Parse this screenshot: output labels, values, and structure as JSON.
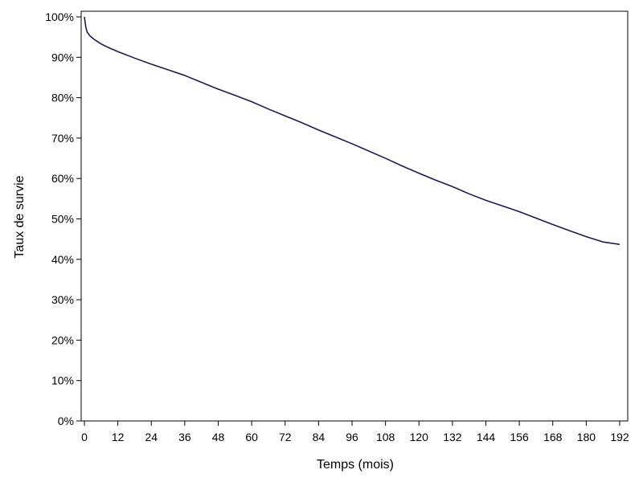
{
  "chart_data": {
    "type": "line",
    "title": "",
    "xlabel": "Temps (mois)",
    "ylabel": "Taux de survie",
    "xlim": [
      0,
      192
    ],
    "ylim": [
      0,
      100
    ],
    "x_ticks": [
      0,
      12,
      24,
      36,
      48,
      60,
      72,
      84,
      96,
      108,
      120,
      132,
      144,
      156,
      168,
      180,
      192
    ],
    "y_ticks": [
      0,
      10,
      20,
      30,
      40,
      50,
      60,
      70,
      80,
      90,
      100
    ],
    "y_tick_labels": [
      "0%",
      "10%",
      "20%",
      "30%",
      "40%",
      "50%",
      "60%",
      "70%",
      "80%",
      "90%",
      "100%"
    ],
    "grid": false,
    "series": [
      {
        "color": "#1a1a5e",
        "x": [
          0,
          0.5,
          1,
          2,
          3,
          4,
          6,
          8,
          12,
          18,
          24,
          30,
          36,
          42,
          48,
          54,
          60,
          66,
          72,
          78,
          84,
          90,
          96,
          102,
          108,
          114,
          120,
          126,
          132,
          138,
          144,
          150,
          156,
          162,
          168,
          174,
          180,
          186,
          192
        ],
        "y": [
          100,
          97.5,
          96.2,
          95.3,
          94.7,
          94.2,
          93.3,
          92.6,
          91.4,
          89.8,
          88.3,
          86.9,
          85.5,
          83.8,
          82.1,
          80.6,
          79.0,
          77.2,
          75.5,
          73.8,
          72.0,
          70.3,
          68.6,
          66.8,
          65.0,
          63.1,
          61.3,
          59.6,
          58.0,
          56.2,
          54.6,
          53.2,
          51.8,
          50.2,
          48.6,
          47.1,
          45.6,
          44.3,
          43.7
        ]
      }
    ]
  }
}
